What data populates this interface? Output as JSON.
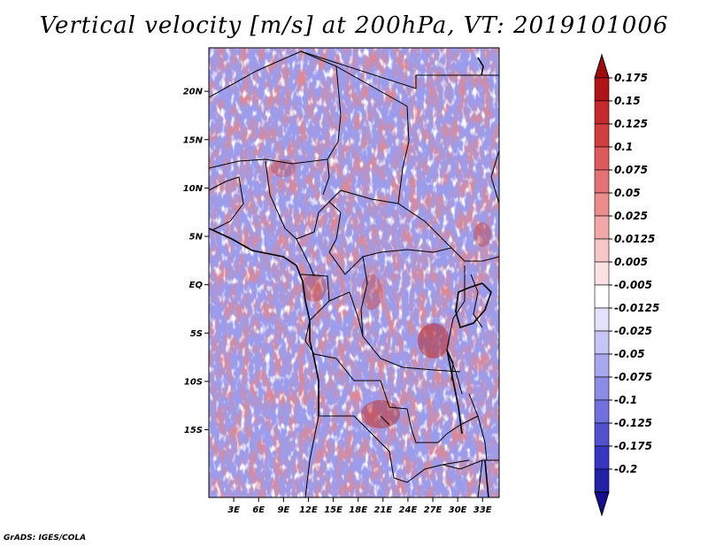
{
  "title": "Vertical velocity [m/s] at 200hPa, VT: 2019101006",
  "credit": "GrADS: IGES/COLA",
  "map": {
    "lon_range": [
      0,
      35
    ],
    "lat_range": [
      -22,
      24.5
    ],
    "lat_ticks": [
      {
        "value": 20,
        "label": "20N"
      },
      {
        "value": 15,
        "label": "15N"
      },
      {
        "value": 10,
        "label": "10N"
      },
      {
        "value": 5,
        "label": "5N"
      },
      {
        "value": 0,
        "label": "EQ"
      },
      {
        "value": -5,
        "label": "5S"
      },
      {
        "value": -10,
        "label": "10S"
      },
      {
        "value": -15,
        "label": "15S"
      }
    ],
    "lon_ticks": [
      {
        "value": 3,
        "label": "3E"
      },
      {
        "value": 6,
        "label": "6E"
      },
      {
        "value": 9,
        "label": "9E"
      },
      {
        "value": 12,
        "label": "12E"
      },
      {
        "value": 15,
        "label": "15E"
      },
      {
        "value": 18,
        "label": "18E"
      },
      {
        "value": 21,
        "label": "21E"
      },
      {
        "value": 24,
        "label": "24E"
      },
      {
        "value": 27,
        "label": "27E"
      },
      {
        "value": 30,
        "label": "30E"
      },
      {
        "value": 33,
        "label": "33E"
      }
    ]
  },
  "colorbar": {
    "levels": [
      {
        "label": "0.175",
        "color": "#b01414"
      },
      {
        "label": "0.15",
        "color": "#c42a2a"
      },
      {
        "label": "0.125",
        "color": "#d23e3e"
      },
      {
        "label": "0.1",
        "color": "#de5a5a"
      },
      {
        "label": "0.075",
        "color": "#e47474"
      },
      {
        "label": "0.05",
        "color": "#ec8c8c"
      },
      {
        "label": "0.025",
        "color": "#f2a8a8"
      },
      {
        "label": "0.0125",
        "color": "#f7c6c6"
      },
      {
        "label": "0.005",
        "color": "#fbe2e2"
      },
      {
        "label": "-0.005",
        "color": "#ffffff"
      },
      {
        "label": "-0.0125",
        "color": "#e2e2fb"
      },
      {
        "label": "-0.025",
        "color": "#c6c6f6"
      },
      {
        "label": "-0.05",
        "color": "#a8a8f0"
      },
      {
        "label": "-0.075",
        "color": "#8c8ce8"
      },
      {
        "label": "-0.1",
        "color": "#7070de"
      },
      {
        "label": "-0.125",
        "color": "#5252d0"
      },
      {
        "label": "-0.175",
        "color": "#3636c0"
      },
      {
        "label": "-0.2",
        "color": "#2222a8"
      }
    ],
    "over_color": "#a00c0c",
    "under_color": "#180c90"
  }
}
